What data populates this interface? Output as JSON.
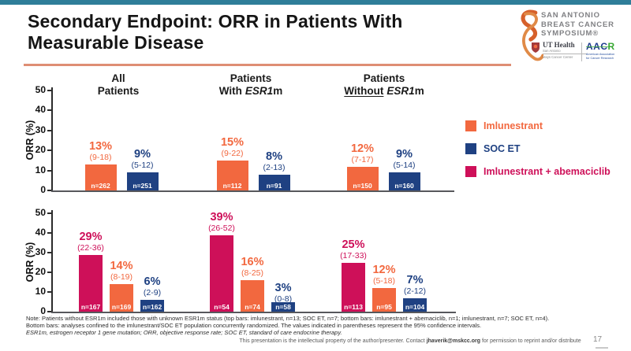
{
  "slide": {
    "title_line1": "Secondary Endpoint: ORR in Patients With",
    "title_line2": "Measurable Disease",
    "accent_bar_color": "#2F7E99",
    "title_rule_color": "#DE8E74"
  },
  "logo": {
    "event_line1": "SAN ANTONIO",
    "event_line2": "BREAST CANCER",
    "event_line3": "SYMPOSIUM®",
    "ut_name": "UT Health",
    "ut_sub1": "San Antonio",
    "ut_sub2": "Mays Cancer Center",
    "aacr_aac": "AAC",
    "aacr_r": "R",
    "aacr_sub1": "American Association",
    "aacr_sub2": "for Cancer Research",
    "aacr_blue": "#1E3B8F",
    "aacr_green": "#39A935",
    "ribbon_orange": "#D6602B"
  },
  "legend": {
    "items": [
      {
        "label": "Imlunestrant",
        "color": "#F2683F"
      },
      {
        "label": "SOC ET",
        "color": "#1F4182"
      },
      {
        "label": "Imlunestrant + abemaciclib",
        "color": "#CE1059"
      }
    ]
  },
  "chart_data": [
    {
      "id": "top",
      "type": "bar",
      "ylabel": "ORR (%)",
      "ylim": [
        0,
        50
      ],
      "yticks": [
        0,
        10,
        20,
        30,
        40,
        50
      ],
      "grid": false,
      "legend_position": "right",
      "series_names": [
        "Imlunestrant",
        "SOC ET"
      ],
      "groups": [
        {
          "label": "All Patients",
          "header": {
            "line1": "All",
            "line2a": "Patients",
            "gene": "",
            "line2c": ""
          },
          "bars": [
            {
              "series": "Imlunestrant",
              "value": 13,
              "pct": "13%",
              "ci": "(9-18)",
              "n": "n=262"
            },
            {
              "series": "SOC ET",
              "value": 9,
              "pct": "9%",
              "ci": "(5-12)",
              "n": "n=251"
            }
          ]
        },
        {
          "label": "Patients With ESR1m",
          "header": {
            "line1": "Patients",
            "line2a": "With",
            "gene": "ESR1",
            "line2c": "m"
          },
          "bars": [
            {
              "series": "Imlunestrant",
              "value": 15,
              "pct": "15%",
              "ci": "(9-22)",
              "n": "n=112"
            },
            {
              "series": "SOC ET",
              "value": 8,
              "pct": "8%",
              "ci": "(2-13)",
              "n": "n=91"
            }
          ]
        },
        {
          "label": "Patients Without ESR1m",
          "header": {
            "line1": "Patients",
            "line2a": "Without",
            "gene": "ESR1",
            "line2c": "m"
          },
          "bars": [
            {
              "series": "Imlunestrant",
              "value": 12,
              "pct": "12%",
              "ci": "(7-17)",
              "n": "n=150"
            },
            {
              "series": "SOC ET",
              "value": 9,
              "pct": "9%",
              "ci": "(5-14)",
              "n": "n=160"
            }
          ]
        }
      ]
    },
    {
      "id": "bottom",
      "type": "bar",
      "ylabel": "ORR (%)",
      "ylim": [
        0,
        50
      ],
      "yticks": [
        0,
        10,
        20,
        30,
        40,
        50
      ],
      "grid": false,
      "series_names": [
        "Imlunestrant + abemaciclib",
        "Imlunestrant",
        "SOC ET"
      ],
      "groups": [
        {
          "label": "All Patients",
          "bars": [
            {
              "series": "Imlunestrant + abemaciclib",
              "value": 29,
              "pct": "29%",
              "ci": "(22-36)",
              "n": "n=167"
            },
            {
              "series": "Imlunestrant",
              "value": 14,
              "pct": "14%",
              "ci": "(8-19)",
              "n": "n=169"
            },
            {
              "series": "SOC ET",
              "value": 6,
              "pct": "6%",
              "ci": "(2-9)",
              "n": "n=162"
            }
          ]
        },
        {
          "label": "Patients With ESR1m",
          "bars": [
            {
              "series": "Imlunestrant + abemaciclib",
              "value": 39,
              "pct": "39%",
              "ci": "(26-52)",
              "n": "n=54"
            },
            {
              "series": "Imlunestrant",
              "value": 16,
              "pct": "16%",
              "ci": "(8-25)",
              "n": "n=74"
            },
            {
              "series": "SOC ET",
              "value": 3,
              "pct": "3%",
              "ci": "(0-8)",
              "n": "n=58"
            }
          ]
        },
        {
          "label": "Patients Without ESR1m",
          "bars": [
            {
              "series": "Imlunestrant + abemaciclib",
              "value": 25,
              "pct": "25%",
              "ci": "(17-33)",
              "n": "n=113"
            },
            {
              "series": "Imlunestrant",
              "value": 12,
              "pct": "12%",
              "ci": "(5-18)",
              "n": "n=95"
            },
            {
              "series": "SOC ET",
              "value": 7,
              "pct": "7%",
              "ci": "(2-12)",
              "n": "n=104"
            }
          ]
        }
      ]
    }
  ],
  "footnotes": {
    "lines": [
      "Note: Patients without ESR1m included those with unknown ESR1m status (top bars: imlunestrant, n=13; SOC ET, n=7; bottom bars: imlunestrant + abemaciclib, n=1; imlunestrant, n=7; SOC ET, n=4).",
      "Bottom bars: analyses confined to the imlunestrant/SOC ET population concurrently randomized. The values indicated in parentheses represent the 95% confidence intervals.",
      "ESR1m, estrogen receptor 1 gene mutation; ORR, objective response rate; SOC ET, standard of care endocrine therapy."
    ]
  },
  "footer": {
    "text_before": "This presentation is the intellectual property of the author/presenter. Contact ",
    "email": "jhaverik@mskcc.org",
    "text_after": " for permission to reprint and/or distribute",
    "page": "17"
  }
}
